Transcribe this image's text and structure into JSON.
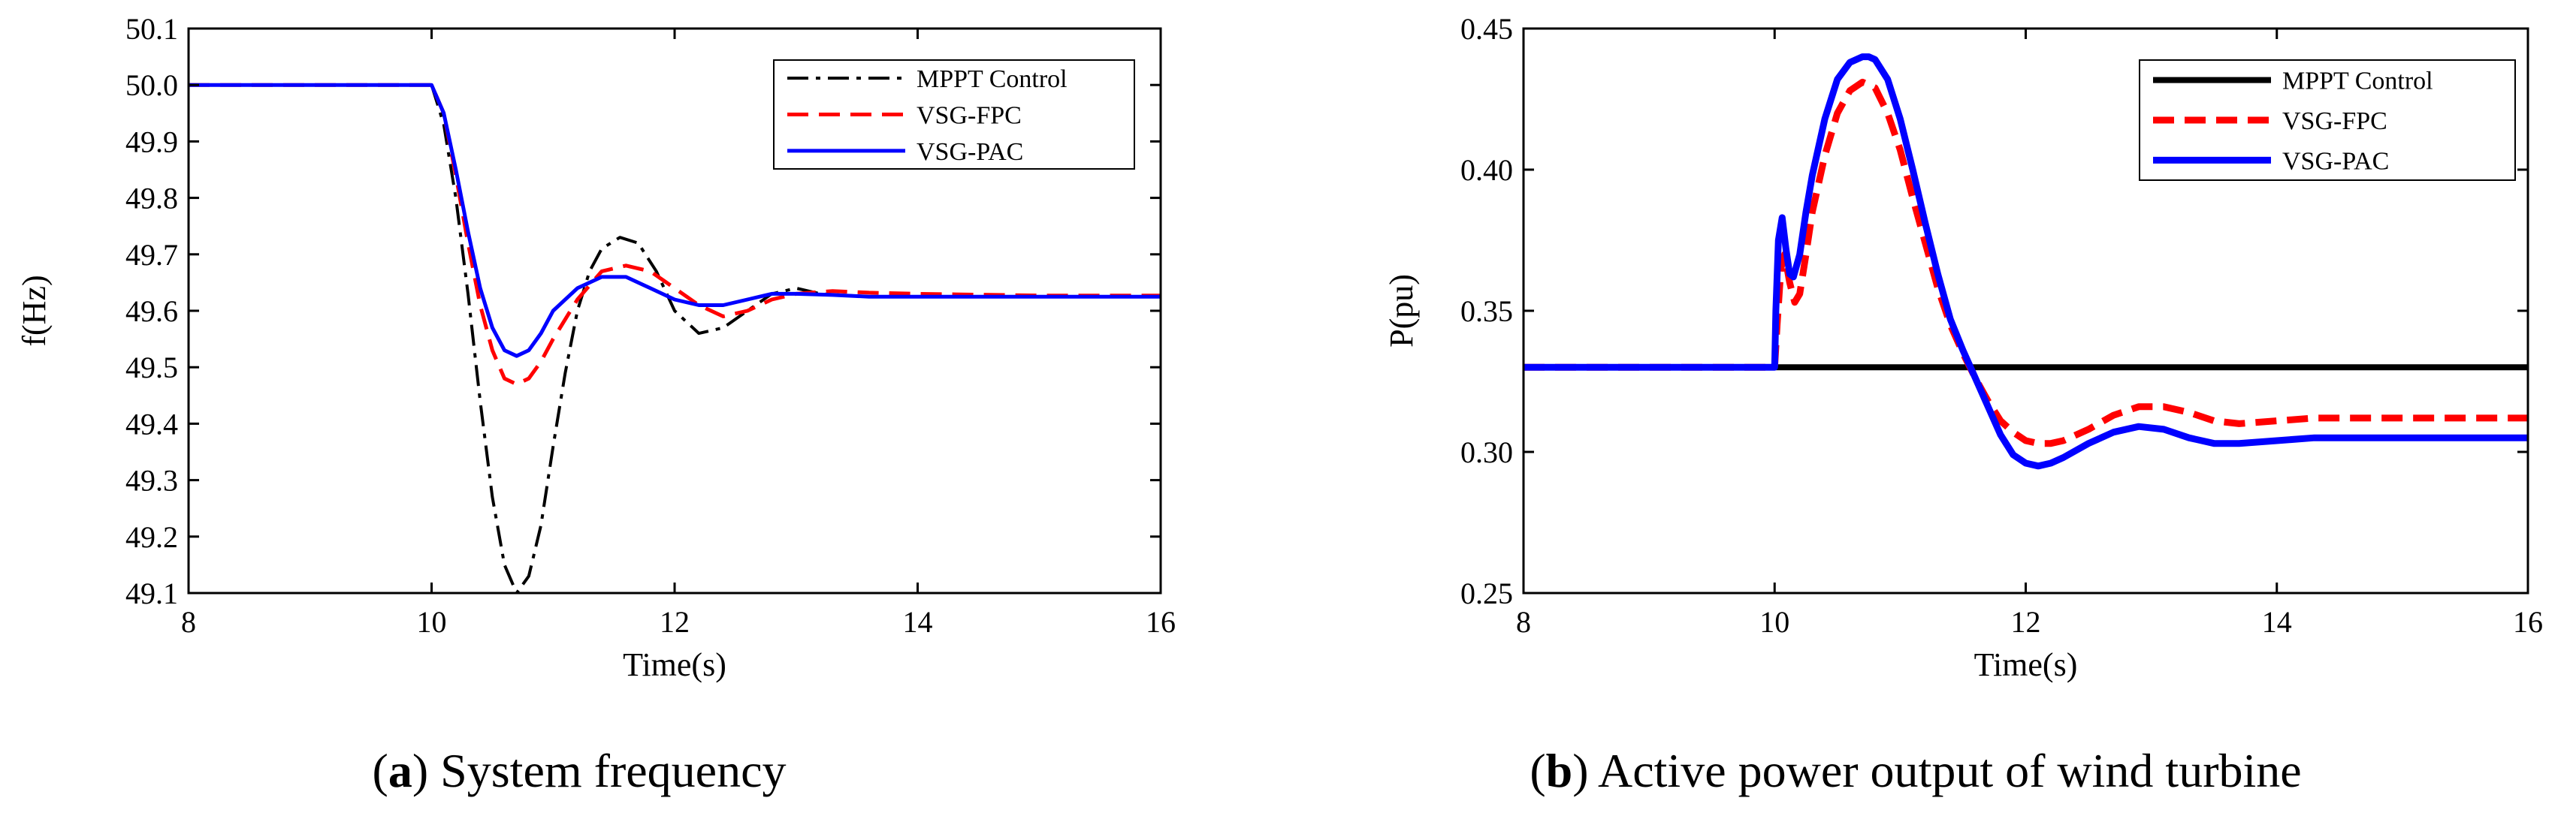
{
  "chart_data": [
    {
      "type": "line",
      "caption": {
        "letter": "a",
        "text": " System frequency"
      },
      "xlabel": "Time(s)",
      "ylabel": "f(Hz)",
      "xlim": [
        8,
        16
      ],
      "ylim": [
        49.1,
        50.1
      ],
      "xticks": [
        8,
        10,
        12,
        14,
        16
      ],
      "xtick_labels": [
        "8",
        "10",
        "12",
        "14",
        "16"
      ],
      "yticks": [
        49.1,
        49.2,
        49.3,
        49.4,
        49.5,
        49.6,
        49.7,
        49.8,
        49.9,
        50.0,
        50.1
      ],
      "ytick_labels": [
        "49.1",
        "49.2",
        "49.3",
        "49.4",
        "49.5",
        "49.6",
        "49.7",
        "49.8",
        "49.9",
        "50.0",
        "50.1"
      ],
      "legend_position": "top-right",
      "series": [
        {
          "name": "MPPT Control",
          "color": "#000000",
          "style": "dashdot",
          "x": [
            8,
            10,
            10.1,
            10.2,
            10.3,
            10.4,
            10.5,
            10.6,
            10.7,
            10.8,
            10.9,
            11.0,
            11.1,
            11.2,
            11.3,
            11.4,
            11.55,
            11.7,
            11.85,
            12.0,
            12.2,
            12.4,
            12.6,
            12.8,
            13.0,
            13.2,
            13.6,
            14,
            15,
            16
          ],
          "y": [
            50.0,
            50.0,
            49.93,
            49.8,
            49.63,
            49.44,
            49.27,
            49.15,
            49.1,
            49.13,
            49.22,
            49.36,
            49.49,
            49.6,
            49.67,
            49.71,
            49.73,
            49.72,
            49.67,
            49.6,
            49.56,
            49.57,
            49.6,
            49.63,
            49.64,
            49.63,
            49.625,
            49.625,
            49.625,
            49.625
          ]
        },
        {
          "name": "VSG-FPC",
          "color": "#ff0000",
          "style": "dashed",
          "x": [
            8,
            10,
            10.1,
            10.2,
            10.3,
            10.4,
            10.5,
            10.6,
            10.7,
            10.8,
            10.9,
            11.0,
            11.2,
            11.4,
            11.6,
            11.8,
            12.0,
            12.2,
            12.4,
            12.6,
            12.8,
            13.0,
            13.3,
            13.6,
            14,
            15,
            16
          ],
          "y": [
            50.0,
            50.0,
            49.95,
            49.84,
            49.72,
            49.61,
            49.53,
            49.48,
            49.47,
            49.48,
            49.51,
            49.55,
            49.62,
            49.67,
            49.68,
            49.67,
            49.64,
            49.61,
            49.59,
            49.6,
            49.62,
            49.63,
            49.635,
            49.632,
            49.63,
            49.627,
            49.627
          ]
        },
        {
          "name": "VSG-PAC",
          "color": "#0000ff",
          "style": "solid",
          "x": [
            8,
            10,
            10.1,
            10.2,
            10.3,
            10.4,
            10.5,
            10.6,
            10.7,
            10.8,
            10.9,
            11.0,
            11.2,
            11.4,
            11.6,
            11.8,
            12.0,
            12.2,
            12.4,
            12.6,
            12.8,
            13.0,
            13.3,
            13.6,
            14,
            15,
            16
          ],
          "y": [
            50.0,
            50.0,
            49.95,
            49.85,
            49.74,
            49.64,
            49.57,
            49.53,
            49.52,
            49.53,
            49.56,
            49.6,
            49.64,
            49.66,
            49.66,
            49.64,
            49.62,
            49.61,
            49.61,
            49.62,
            49.63,
            49.63,
            49.628,
            49.625,
            49.625,
            49.625,
            49.625
          ]
        }
      ]
    },
    {
      "type": "line",
      "caption": {
        "letter": "b",
        "text": " Active power output of wind turbine"
      },
      "xlabel": "Time(s)",
      "ylabel": "P(pu)",
      "xlim": [
        8,
        16
      ],
      "ylim": [
        0.25,
        0.45
      ],
      "xticks": [
        8,
        10,
        12,
        14,
        16
      ],
      "xtick_labels": [
        "8",
        "10",
        "12",
        "14",
        "16"
      ],
      "yticks": [
        0.25,
        0.3,
        0.35,
        0.4,
        0.45
      ],
      "ytick_labels": [
        "0.25",
        "0.30",
        "0.35",
        "0.40",
        "0.45"
      ],
      "legend_position": "top-right",
      "series": [
        {
          "name": "MPPT Control",
          "color": "#000000",
          "style": "solid",
          "x": [
            8,
            16
          ],
          "y": [
            0.33,
            0.33
          ]
        },
        {
          "name": "VSG-FPC",
          "color": "#ff0000",
          "style": "dashed",
          "x": [
            8,
            10,
            10.02,
            10.05,
            10.08,
            10.12,
            10.16,
            10.2,
            10.25,
            10.3,
            10.4,
            10.5,
            10.6,
            10.7,
            10.8,
            10.9,
            11.0,
            11.1,
            11.2,
            11.3,
            11.4,
            11.5,
            11.6,
            11.7,
            11.8,
            11.9,
            12.0,
            12.1,
            12.2,
            12.3,
            12.5,
            12.7,
            12.9,
            13.1,
            13.3,
            13.5,
            13.7,
            14.0,
            14.3,
            14.6,
            15,
            15.5,
            16
          ],
          "y": [
            0.33,
            0.33,
            0.345,
            0.365,
            0.37,
            0.36,
            0.353,
            0.356,
            0.37,
            0.385,
            0.405,
            0.42,
            0.428,
            0.431,
            0.429,
            0.42,
            0.407,
            0.39,
            0.374,
            0.358,
            0.345,
            0.335,
            0.326,
            0.318,
            0.311,
            0.307,
            0.304,
            0.303,
            0.303,
            0.304,
            0.308,
            0.313,
            0.316,
            0.316,
            0.314,
            0.311,
            0.31,
            0.311,
            0.312,
            0.312,
            0.312,
            0.312,
            0.312
          ]
        },
        {
          "name": "VSG-PAC",
          "color": "#0000ff",
          "style": "solid",
          "x": [
            8,
            10,
            10.01,
            10.03,
            10.06,
            10.09,
            10.12,
            10.15,
            10.2,
            10.25,
            10.3,
            10.4,
            10.5,
            10.6,
            10.7,
            10.75,
            10.8,
            10.9,
            11.0,
            11.1,
            11.2,
            11.3,
            11.4,
            11.5,
            11.6,
            11.7,
            11.8,
            11.9,
            12.0,
            12.1,
            12.2,
            12.3,
            12.5,
            12.7,
            12.9,
            13.1,
            13.3,
            13.5,
            13.7,
            14.0,
            14.3,
            14.6,
            15,
            15.5,
            16
          ],
          "y": [
            0.33,
            0.33,
            0.35,
            0.375,
            0.383,
            0.372,
            0.363,
            0.362,
            0.37,
            0.385,
            0.398,
            0.418,
            0.432,
            0.438,
            0.44,
            0.44,
            0.439,
            0.432,
            0.418,
            0.4,
            0.381,
            0.363,
            0.347,
            0.336,
            0.326,
            0.316,
            0.306,
            0.299,
            0.296,
            0.295,
            0.296,
            0.298,
            0.303,
            0.307,
            0.309,
            0.308,
            0.305,
            0.303,
            0.303,
            0.304,
            0.305,
            0.305,
            0.305,
            0.305,
            0.305
          ]
        }
      ]
    }
  ]
}
